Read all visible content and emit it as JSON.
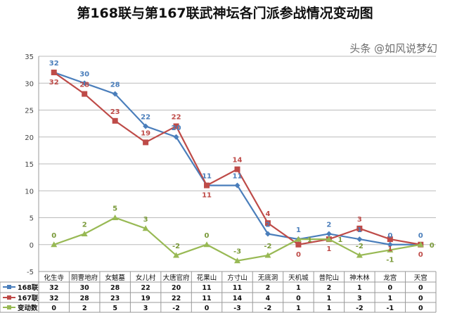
{
  "chart_data": {
    "type": "line",
    "title": "第168联与第167联武神坛各门派参战情况变动图",
    "categories": [
      "化生寺",
      "阴曹地府",
      "女魃墓",
      "女儿村",
      "大唐官府",
      "花果山",
      "方寸山",
      "无底洞",
      "天机城",
      "普陀山",
      "神木林",
      "龙宫",
      "天宫"
    ],
    "series": [
      {
        "name": "168联",
        "values": [
          32,
          30,
          28,
          22,
          20,
          11,
          11,
          2,
          1,
          2,
          1,
          0,
          0
        ],
        "color": "#4a7ebb",
        "marker": "diamond"
      },
      {
        "name": "167联",
        "values": [
          32,
          28,
          23,
          19,
          22,
          11,
          14,
          4,
          0,
          1,
          3,
          1,
          0
        ],
        "color": "#be4b48",
        "marker": "square"
      },
      {
        "name": "变动数",
        "values": [
          0,
          2,
          5,
          3,
          -2,
          0,
          -3,
          -2,
          1,
          1,
          -2,
          -1,
          0
        ],
        "color": "#98b954",
        "marker": "triangle"
      }
    ],
    "ylim": [
      -5,
      35
    ],
    "yticks": [
      -5,
      0,
      5,
      10,
      15,
      20,
      25,
      30,
      35
    ],
    "grid": true,
    "legend": "data-table"
  },
  "watermark": "头条 @如风说梦幻"
}
